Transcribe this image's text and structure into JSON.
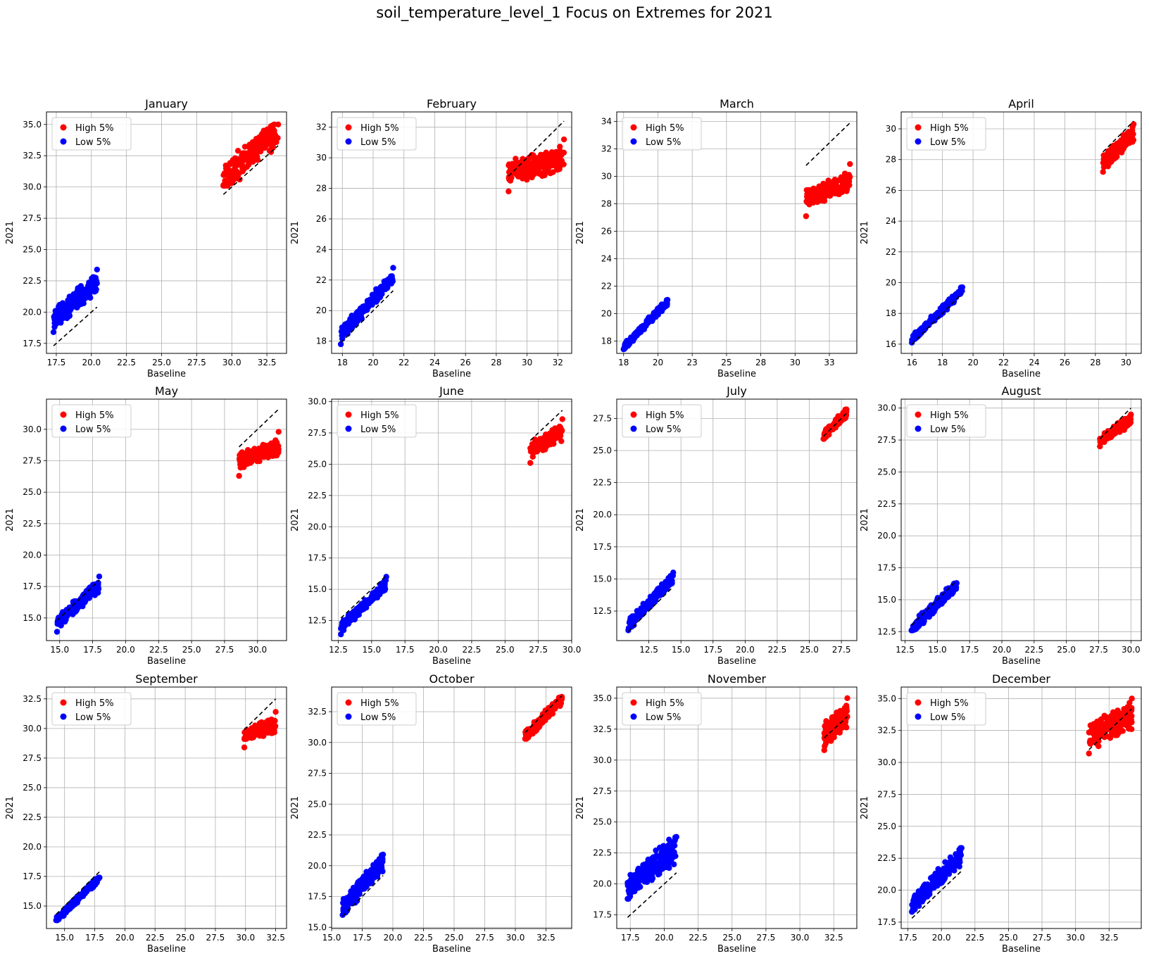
{
  "page": {
    "title": "soil_temperature_level_1 Focus on Extremes for 2021"
  },
  "legend_labels": [
    "High 5%",
    "Low 5%"
  ],
  "colors": {
    "high": "#ff0000",
    "low": "#0000ff",
    "reference": "#000000",
    "grid": "#b0b0b0"
  },
  "chart_data": [
    {
      "type": "scatter",
      "title": "January",
      "xlabel": "Baseline",
      "ylabel": "2021",
      "xlim": [
        16.8,
        33.9
      ],
      "ylim": [
        16.7,
        36.0
      ],
      "xticks": [
        17.5,
        20.0,
        22.5,
        25.0,
        27.5,
        30.0,
        32.5
      ],
      "yticks": [
        17.5,
        20.0,
        22.5,
        25.0,
        27.5,
        30.0,
        32.5,
        35.0
      ],
      "tick_decimals": 1,
      "grid": true,
      "legend": "upper left",
      "high": {
        "name": "High 5%",
        "x_range": [
          29.4,
          33.3
        ],
        "y_range": [
          30.1,
          35.0
        ],
        "count": 180,
        "slope": 1.0,
        "spread": 1.3
      },
      "low": {
        "name": "Low 5%",
        "x_range": [
          17.3,
          20.4
        ],
        "y_range": [
          18.4,
          23.4
        ],
        "count": 220,
        "slope": 1.0,
        "spread": 0.9
      },
      "reference_lines": [
        {
          "x": [
            17.3,
            20.4
          ],
          "y": [
            17.3,
            20.4
          ]
        },
        {
          "x": [
            29.4,
            33.3
          ],
          "y": [
            29.4,
            33.3
          ]
        }
      ]
    },
    {
      "type": "scatter",
      "title": "February",
      "xlabel": "Baseline",
      "ylabel": "2021",
      "xlim": [
        17.3,
        32.9
      ],
      "ylim": [
        17.2,
        33.0
      ],
      "xticks": [
        18,
        20,
        22,
        24,
        26,
        28,
        30,
        32
      ],
      "yticks": [
        18,
        20,
        22,
        24,
        26,
        28,
        30,
        32
      ],
      "tick_decimals": 0,
      "grid": true,
      "legend": "upper left",
      "high": {
        "name": "High 5%",
        "x_range": [
          28.8,
          32.4
        ],
        "y_range": [
          27.8,
          31.2
        ],
        "count": 200,
        "slope": 0.25,
        "spread": 0.9
      },
      "low": {
        "name": "Low 5%",
        "x_range": [
          17.9,
          21.3
        ],
        "y_range": [
          17.8,
          22.8
        ],
        "count": 180,
        "slope": 1.1,
        "spread": 0.5
      },
      "reference_lines": [
        {
          "x": [
            17.9,
            21.3
          ],
          "y": [
            17.9,
            21.3
          ]
        },
        {
          "x": [
            28.8,
            32.4
          ],
          "y": [
            28.8,
            32.4
          ]
        }
      ]
    },
    {
      "type": "scatter",
      "title": "March",
      "xlabel": "Baseline",
      "ylabel": "2021",
      "xlim": [
        17.0,
        34.5
      ],
      "ylim": [
        17.1,
        34.7
      ],
      "xticks": [
        17.5,
        20.0,
        22.5,
        25.0,
        27.5,
        30.0,
        32.5
      ],
      "yticks": [
        18,
        20,
        22,
        24,
        26,
        28,
        30,
        32,
        34
      ],
      "tick_decimals": 0,
      "grid": true,
      "legend": "upper left",
      "high": {
        "name": "High 5%",
        "x_range": [
          30.8,
          34.0
        ],
        "y_range": [
          27.1,
          30.9
        ],
        "count": 180,
        "slope": 0.4,
        "spread": 0.8
      },
      "low": {
        "name": "Low 5%",
        "x_range": [
          17.5,
          20.7
        ],
        "y_range": [
          17.4,
          21.0
        ],
        "count": 150,
        "slope": 1.05,
        "spread": 0.3
      },
      "reference_lines": [
        {
          "x": [
            30.8,
            34.0
          ],
          "y": [
            30.8,
            33.9
          ]
        }
      ]
    },
    {
      "type": "scatter",
      "title": "April",
      "xlabel": "Baseline",
      "ylabel": "2021",
      "xlim": [
        15.3,
        31.0
      ],
      "ylim": [
        15.4,
        31.1
      ],
      "xticks": [
        16,
        18,
        20,
        22,
        24,
        26,
        28,
        30
      ],
      "yticks": [
        16,
        18,
        20,
        22,
        24,
        26,
        28,
        30
      ],
      "tick_decimals": 0,
      "grid": true,
      "legend": "upper left",
      "high": {
        "name": "High 5%",
        "x_range": [
          28.5,
          30.5
        ],
        "y_range": [
          27.2,
          30.3
        ],
        "count": 180,
        "slope": 1.0,
        "spread": 0.6
      },
      "low": {
        "name": "Low 5%",
        "x_range": [
          16.0,
          19.3
        ],
        "y_range": [
          16.1,
          19.7
        ],
        "count": 150,
        "slope": 1.0,
        "spread": 0.3
      },
      "reference_lines": [
        {
          "x": [
            16.0,
            19.3
          ],
          "y": [
            16.0,
            19.3
          ]
        },
        {
          "x": [
            28.5,
            30.5
          ],
          "y": [
            28.5,
            30.5
          ]
        }
      ]
    },
    {
      "type": "scatter",
      "title": "May",
      "xlabel": "Baseline",
      "ylabel": "2021",
      "xlim": [
        14.0,
        32.2
      ],
      "ylim": [
        13.2,
        32.4
      ],
      "xticks": [
        15.0,
        17.5,
        20.0,
        22.5,
        25.0,
        27.5,
        30.0
      ],
      "yticks": [
        15.0,
        17.5,
        20.0,
        22.5,
        25.0,
        27.5,
        30.0
      ],
      "tick_decimals": 1,
      "grid": true,
      "legend": "upper left",
      "high": {
        "name": "High 5%",
        "x_range": [
          28.6,
          31.6
        ],
        "y_range": [
          26.3,
          29.8
        ],
        "count": 160,
        "slope": 0.4,
        "spread": 0.8
      },
      "low": {
        "name": "Low 5%",
        "x_range": [
          14.8,
          18.0
        ],
        "y_range": [
          13.9,
          18.3
        ],
        "count": 170,
        "slope": 0.95,
        "spread": 0.6
      },
      "reference_lines": [
        {
          "x": [
            14.8,
            18.0
          ],
          "y": [
            14.8,
            18.0
          ]
        },
        {
          "x": [
            28.6,
            31.6
          ],
          "y": [
            28.6,
            31.6
          ]
        }
      ]
    },
    {
      "type": "scatter",
      "title": "June",
      "xlabel": "Baseline",
      "ylabel": "2021",
      "xlim": [
        12.0,
        30.0
      ],
      "ylim": [
        10.9,
        30.2
      ],
      "xticks": [
        12.5,
        15.0,
        17.5,
        20.0,
        22.5,
        25.0,
        27.5,
        30.0
      ],
      "yticks": [
        12.5,
        15.0,
        17.5,
        20.0,
        22.5,
        25.0,
        27.5,
        30.0
      ],
      "tick_decimals": 1,
      "grid": true,
      "legend": "upper left",
      "high": {
        "name": "High 5%",
        "x_range": [
          26.9,
          29.3
        ],
        "y_range": [
          25.1,
          28.6
        ],
        "count": 130,
        "slope": 0.6,
        "spread": 0.7
      },
      "low": {
        "name": "Low 5%",
        "x_range": [
          12.7,
          16.1
        ],
        "y_range": [
          11.4,
          16.0
        ],
        "count": 170,
        "slope": 1.0,
        "spread": 0.5
      },
      "reference_lines": [
        {
          "x": [
            12.7,
            16.1
          ],
          "y": [
            12.7,
            16.1
          ]
        },
        {
          "x": [
            26.9,
            29.3
          ],
          "y": [
            26.9,
            29.3
          ]
        }
      ]
    },
    {
      "type": "scatter",
      "title": "July",
      "xlabel": "Baseline",
      "ylabel": "2021",
      "xlim": [
        10.0,
        28.7
      ],
      "ylim": [
        10.2,
        29.0
      ],
      "xticks": [
        12.5,
        15.0,
        17.5,
        20.0,
        22.5,
        25.0,
        27.5
      ],
      "yticks": [
        12.5,
        15.0,
        17.5,
        20.0,
        22.5,
        25.0,
        27.5
      ],
      "tick_decimals": 1,
      "grid": true,
      "legend": "upper left",
      "high": {
        "name": "High 5%",
        "x_range": [
          26.1,
          27.9
        ],
        "y_range": [
          25.9,
          28.2
        ],
        "count": 120,
        "slope": 1.0,
        "spread": 0.4
      },
      "low": {
        "name": "Low 5%",
        "x_range": [
          10.9,
          14.4
        ],
        "y_range": [
          11.0,
          15.5
        ],
        "count": 170,
        "slope": 1.05,
        "spread": 0.5
      },
      "reference_lines": [
        {
          "x": [
            10.9,
            14.4
          ],
          "y": [
            10.9,
            14.4
          ]
        },
        {
          "x": [
            26.1,
            27.9
          ],
          "y": [
            26.1,
            27.9
          ]
        }
      ]
    },
    {
      "type": "scatter",
      "title": "August",
      "xlabel": "Baseline",
      "ylabel": "2021",
      "xlim": [
        12.2,
        30.8
      ],
      "ylim": [
        11.8,
        30.7
      ],
      "xticks": [
        12.5,
        15.0,
        17.5,
        20.0,
        22.5,
        25.0,
        27.5,
        30.0
      ],
      "yticks": [
        12.5,
        15.0,
        17.5,
        20.0,
        22.5,
        25.0,
        27.5,
        30.0
      ],
      "tick_decimals": 1,
      "grid": true,
      "legend": "upper left",
      "high": {
        "name": "High 5%",
        "x_range": [
          27.6,
          30.0
        ],
        "y_range": [
          27.0,
          29.5
        ],
        "count": 130,
        "slope": 0.7,
        "spread": 0.5
      },
      "low": {
        "name": "Low 5%",
        "x_range": [
          13.0,
          16.5
        ],
        "y_range": [
          12.6,
          16.3
        ],
        "count": 170,
        "slope": 1.0,
        "spread": 0.5
      },
      "reference_lines": [
        {
          "x": [
            13.0,
            16.5
          ],
          "y": [
            13.0,
            16.5
          ]
        },
        {
          "x": [
            27.6,
            30.0
          ],
          "y": [
            27.6,
            30.0
          ]
        }
      ]
    },
    {
      "type": "scatter",
      "title": "September",
      "xlabel": "Baseline",
      "ylabel": "2021",
      "xlim": [
        13.5,
        33.4
      ],
      "ylim": [
        13.1,
        33.5
      ],
      "xticks": [
        15.0,
        17.5,
        20.0,
        22.5,
        25.0,
        27.5,
        30.0,
        32.5
      ],
      "yticks": [
        15.0,
        17.5,
        20.0,
        22.5,
        25.0,
        27.5,
        30.0,
        32.5
      ],
      "tick_decimals": 1,
      "grid": true,
      "legend": "upper left",
      "high": {
        "name": "High 5%",
        "x_range": [
          29.9,
          32.5
        ],
        "y_range": [
          28.4,
          31.4
        ],
        "count": 130,
        "slope": 0.35,
        "spread": 0.7
      },
      "low": {
        "name": "Low 5%",
        "x_range": [
          14.3,
          17.9
        ],
        "y_range": [
          13.8,
          17.4
        ],
        "count": 160,
        "slope": 1.0,
        "spread": 0.3
      },
      "reference_lines": [
        {
          "x": [
            14.3,
            17.9
          ],
          "y": [
            14.3,
            17.9
          ]
        },
        {
          "x": [
            29.9,
            32.5
          ],
          "y": [
            29.9,
            32.5
          ]
        }
      ]
    },
    {
      "type": "scatter",
      "title": "October",
      "xlabel": "Baseline",
      "ylabel": "2021",
      "xlim": [
        15.0,
        34.6
      ],
      "ylim": [
        14.9,
        34.5
      ],
      "xticks": [
        15.0,
        17.5,
        20.0,
        22.5,
        25.0,
        27.5,
        30.0,
        32.5
      ],
      "yticks": [
        15.0,
        17.5,
        20.0,
        22.5,
        25.0,
        27.5,
        30.0,
        32.5
      ],
      "tick_decimals": 1,
      "grid": true,
      "legend": "upper left",
      "high": {
        "name": "High 5%",
        "x_range": [
          30.8,
          33.8
        ],
        "y_range": [
          30.3,
          33.7
        ],
        "count": 150,
        "slope": 1.0,
        "spread": 0.5
      },
      "low": {
        "name": "Low 5%",
        "x_range": [
          15.9,
          19.2
        ],
        "y_range": [
          16.0,
          20.9
        ],
        "count": 180,
        "slope": 1.1,
        "spread": 0.8
      },
      "reference_lines": [
        {
          "x": [
            15.9,
            19.2
          ],
          "y": [
            15.9,
            19.2
          ]
        },
        {
          "x": [
            30.8,
            33.8
          ],
          "y": [
            30.8,
            33.8
          ]
        }
      ]
    },
    {
      "type": "scatter",
      "title": "November",
      "xlabel": "Baseline",
      "ylabel": "2021",
      "xlim": [
        16.5,
        34.2
      ],
      "ylim": [
        16.4,
        35.9
      ],
      "xticks": [
        17.5,
        20.0,
        22.5,
        25.0,
        27.5,
        30.0,
        32.5
      ],
      "yticks": [
        17.5,
        20.0,
        22.5,
        25.0,
        27.5,
        30.0,
        32.5,
        35.0
      ],
      "tick_decimals": 1,
      "grid": true,
      "legend": "upper left",
      "high": {
        "name": "High 5%",
        "x_range": [
          31.8,
          33.5
        ],
        "y_range": [
          30.8,
          35.0
        ],
        "count": 170,
        "slope": 1.0,
        "spread": 1.1
      },
      "low": {
        "name": "Low 5%",
        "x_range": [
          17.3,
          20.9
        ],
        "y_range": [
          18.8,
          23.8
        ],
        "count": 230,
        "slope": 0.9,
        "spread": 1.2
      },
      "reference_lines": [
        {
          "x": [
            17.3,
            20.9
          ],
          "y": [
            17.3,
            20.9
          ]
        },
        {
          "x": [
            31.8,
            33.5
          ],
          "y": [
            31.8,
            33.5
          ]
        }
      ]
    },
    {
      "type": "scatter",
      "title": "December",
      "xlabel": "Baseline",
      "ylabel": "2021",
      "xlim": [
        17.0,
        34.9
      ],
      "ylim": [
        17.0,
        35.9
      ],
      "xticks": [
        17.5,
        20.0,
        22.5,
        25.0,
        27.5,
        30.0,
        32.5
      ],
      "yticks": [
        17.5,
        20.0,
        22.5,
        25.0,
        27.5,
        30.0,
        32.5,
        35.0
      ],
      "tick_decimals": 1,
      "grid": true,
      "legend": "upper left",
      "high": {
        "name": "High 5%",
        "x_range": [
          31.0,
          34.2
        ],
        "y_range": [
          30.7,
          35.0
        ],
        "count": 190,
        "slope": 0.5,
        "spread": 1.2
      },
      "low": {
        "name": "Low 5%",
        "x_range": [
          17.8,
          21.5
        ],
        "y_range": [
          18.3,
          23.3
        ],
        "count": 210,
        "slope": 1.05,
        "spread": 0.8
      },
      "reference_lines": [
        {
          "x": [
            17.8,
            21.5
          ],
          "y": [
            17.8,
            21.5
          ]
        },
        {
          "x": [
            31.0,
            34.2
          ],
          "y": [
            31.0,
            34.2
          ]
        }
      ]
    }
  ]
}
